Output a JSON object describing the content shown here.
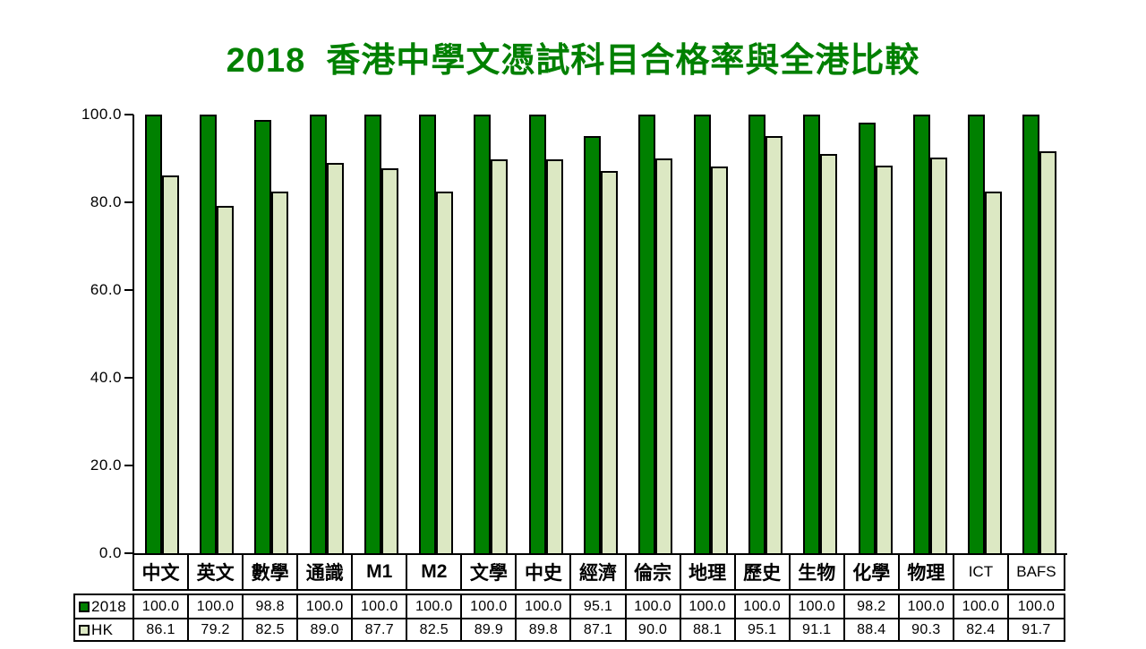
{
  "chart_data": {
    "type": "bar",
    "title": "2018  香港中學文憑試科目合格率與全港比較",
    "title_color": "#008000",
    "categories": [
      "中文",
      "英文",
      "數學",
      "通識",
      "M1",
      "M2",
      "文學",
      "中史",
      "經濟",
      "倫宗",
      "地理",
      "歷史",
      "生物",
      "化學",
      "物理",
      "ICT",
      "BAFS"
    ],
    "series": [
      {
        "name": "2018",
        "color": "#008000",
        "values": [
          100.0,
          100.0,
          98.8,
          100.0,
          100.0,
          100.0,
          100.0,
          100.0,
          95.1,
          100.0,
          100.0,
          100.0,
          100.0,
          98.2,
          100.0,
          100.0,
          100.0
        ]
      },
      {
        "name": "HK",
        "color": "#dce8c3",
        "values": [
          86.1,
          79.2,
          82.5,
          89.0,
          87.7,
          82.5,
          89.9,
          89.8,
          87.1,
          90.0,
          88.1,
          95.1,
          91.1,
          88.4,
          90.3,
          82.4,
          91.7
        ]
      }
    ],
    "xlabel": "",
    "ylabel": "",
    "ylim": [
      0,
      100
    ],
    "y_ticks": [
      "100.0",
      "80.0",
      "60.0",
      "40.0",
      "20.0",
      "0.0"
    ],
    "grid": false,
    "bar_border_color": "#000000",
    "axis_color": "#000000",
    "legend_position": "bottom-table-left",
    "legend_labels": [
      "2018",
      "HK"
    ]
  }
}
